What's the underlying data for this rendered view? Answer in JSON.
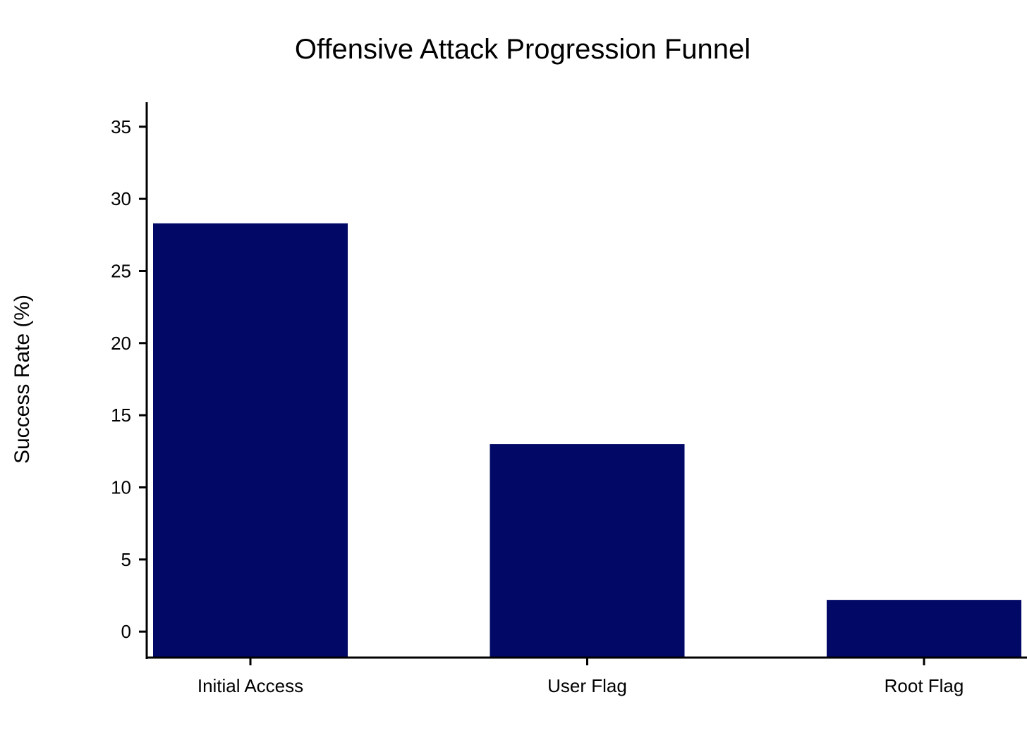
{
  "chart_data": {
    "type": "bar",
    "title": "Offensive Attack Progression Funnel",
    "xlabel": "",
    "ylabel": "Success Rate (%)",
    "categories": [
      "Initial Access",
      "User Flag",
      "Root Flag"
    ],
    "values": [
      28.3,
      13.0,
      2.2
    ],
    "ylim": [
      -1.8,
      36.7
    ],
    "yticks": [
      0,
      5,
      10,
      15,
      20,
      25,
      30,
      35
    ],
    "grid": false,
    "legend": "none",
    "bar_color": "#020866"
  }
}
